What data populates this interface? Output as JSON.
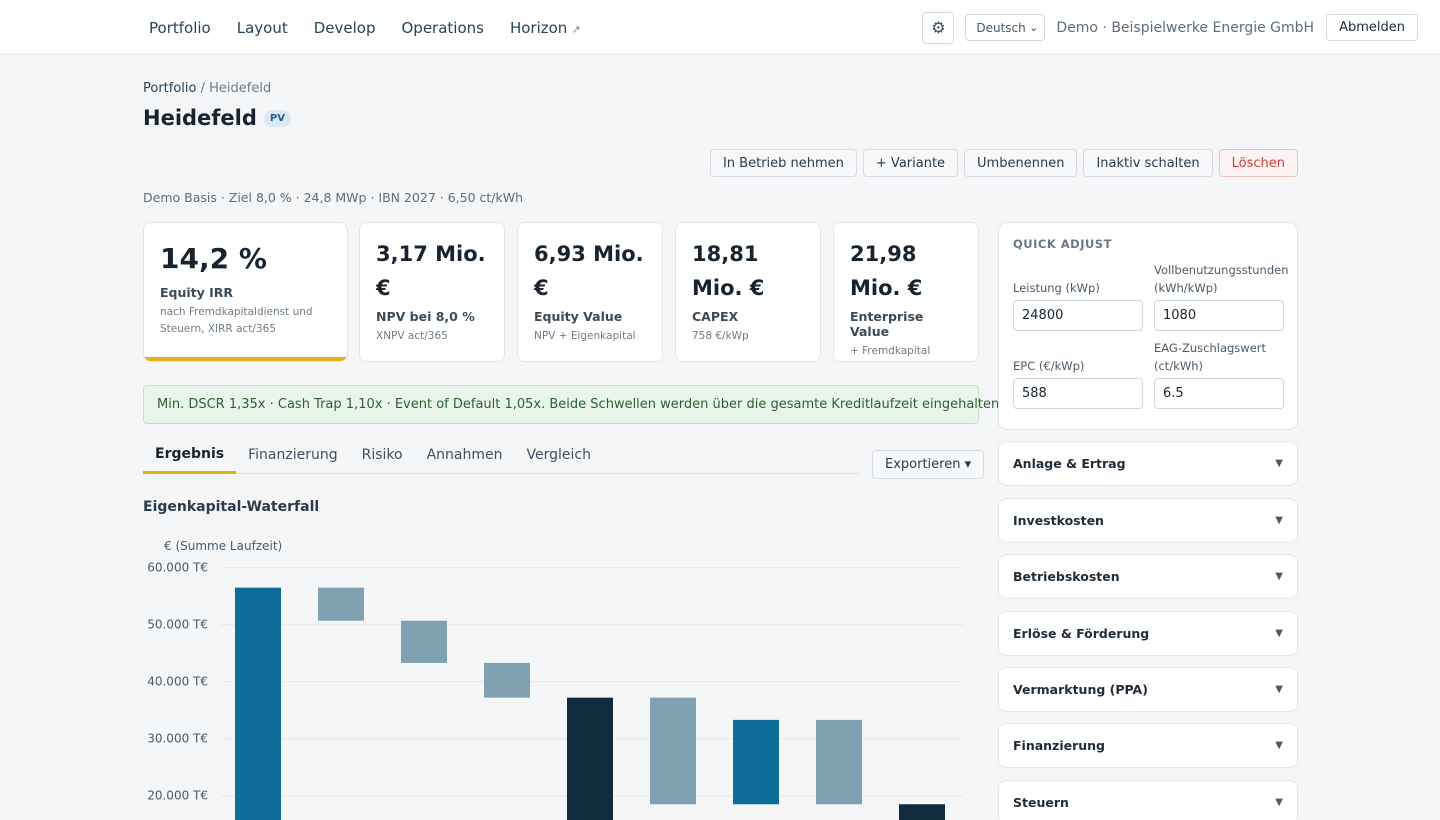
{
  "nav": {
    "items": [
      {
        "label": "Portfolio",
        "external": false
      },
      {
        "label": "Layout",
        "external": false
      },
      {
        "label": "Develop",
        "external": false
      },
      {
        "label": "Operations",
        "external": false
      },
      {
        "label": "Horizon",
        "external": true
      }
    ],
    "external_icon": "↗",
    "settings_icon": "gear-icon",
    "settings_glyph": "⚙",
    "language": "Deutsch",
    "company": "Demo · Beispielwerke Energie GmbH",
    "logout": "Abmelden"
  },
  "breadcrumb": {
    "parent": "Portfolio",
    "separator": " / ",
    "current": "Heidefeld"
  },
  "page": {
    "title": "Heidefeld",
    "badge": "PV"
  },
  "actions": [
    "In Betrieb nehmen",
    "+ Variante",
    "Umbenennen",
    "Inaktiv schalten",
    "Löschen"
  ],
  "meta_line": "Demo Basis · Ziel 8,0 % · 24,8 MWp · IBN 2027 · 6,50 ct/kWh",
  "kpis": [
    {
      "value": "14,2 %",
      "label": "Equity IRR",
      "sub": "nach Fremdkapitaldienst und Steuern, XIRR act/365",
      "highlight": true
    },
    {
      "value": "3,17 Mio. €",
      "label": "NPV bei 8,0 %",
      "sub": "XNPV act/365",
      "highlight": false
    },
    {
      "value": "6,93 Mio. €",
      "label": "Equity Value",
      "sub": "NPV + Eigenkapital",
      "highlight": false
    },
    {
      "value": "18,81 Mio. €",
      "label": "CAPEX",
      "sub": "758 €/kWp",
      "highlight": false
    },
    {
      "value": "21,98 Mio. €",
      "label": "Enterprise Value",
      "sub": "+ Fremdkapital",
      "highlight": false
    }
  ],
  "alert": "Min. DSCR 1,35x · Cash Trap 1,10x · Event of Default 1,05x. Beide Schwellen werden über die gesamte Kreditlaufzeit eingehalten.",
  "tabs": [
    {
      "label": "Ergebnis",
      "active": true
    },
    {
      "label": "Finanzierung",
      "active": false
    },
    {
      "label": "Risiko",
      "active": false
    },
    {
      "label": "Annahmen",
      "active": false
    },
    {
      "label": "Vergleich",
      "active": false
    }
  ],
  "export_label": "Exportieren ▾",
  "section_title": "Eigenkapital-Waterfall",
  "quick_adjust": {
    "title": "QUICK ADJUST",
    "fields": [
      {
        "label": "Leistung (kWp)",
        "value": "24800"
      },
      {
        "label": "Vollbenutzungsstunden (kWh/kWp)",
        "value": "1080"
      },
      {
        "label": "EPC (€/kWp)",
        "value": "588"
      },
      {
        "label": "EAG-Zuschlagswert (ct/kWh)",
        "value": "6.5"
      }
    ]
  },
  "accordions": [
    "Anlage & Ertrag",
    "Investkosten",
    "Betriebskosten",
    "Erlöse & Förderung",
    "Vermarktung (PPA)",
    "Finanzierung",
    "Steuern"
  ],
  "accordion_chevron": "▼",
  "chart_data": {
    "type": "bar",
    "subtype": "waterfall",
    "ylabel": "€ (Summe Laufzeit)",
    "tick_values": [
      60000,
      50000,
      40000,
      30000,
      20000
    ],
    "tick_labels": [
      "60.000 T€",
      "50.000 T€",
      "40.000 T€",
      "30.000 T€",
      "20.000 T€"
    ],
    "ylim": [
      17000,
      62500
    ],
    "grid": true,
    "colors": {
      "total": "#0f6d9c",
      "delta": "#7fa1b1",
      "subtotal": "#0f2b3d"
    },
    "bars": [
      {
        "low": 0,
        "high": 56500,
        "kind": "total"
      },
      {
        "low": 50700,
        "high": 56500,
        "kind": "delta"
      },
      {
        "low": 43300,
        "high": 50700,
        "kind": "delta"
      },
      {
        "low": 37200,
        "high": 43300,
        "kind": "delta"
      },
      {
        "low": 0,
        "high": 37200,
        "kind": "subtotal"
      },
      {
        "low": 18500,
        "high": 37200,
        "kind": "delta"
      },
      {
        "low": 18500,
        "high": 33300,
        "kind": "total"
      },
      {
        "low": 18500,
        "high": 33300,
        "kind": "delta"
      },
      {
        "low": 0,
        "high": 18500,
        "kind": "subtotal"
      }
    ]
  }
}
